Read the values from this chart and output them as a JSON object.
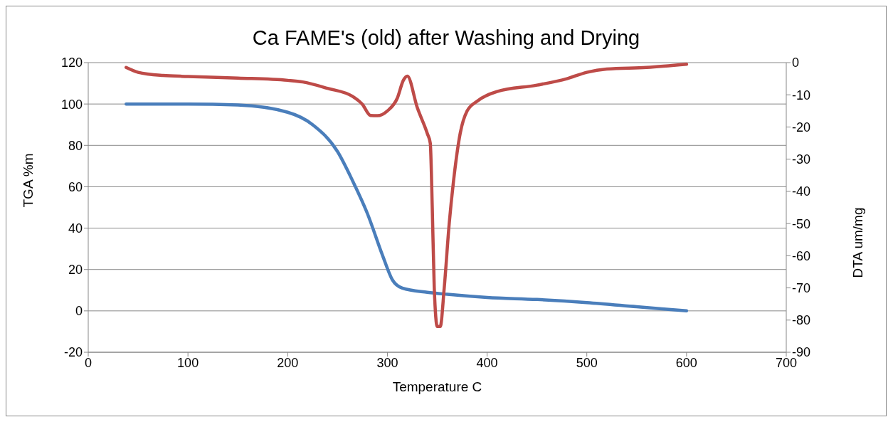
{
  "chart_data": {
    "type": "line",
    "title": "Ca FAME's (old) after Washing and Drying",
    "xlabel": "Temperature  C",
    "ylabel": "TGA %m",
    "y2label": "DTA um/mg",
    "xlim": [
      0,
      700
    ],
    "xticks": [
      0,
      100,
      200,
      300,
      400,
      500,
      600,
      700
    ],
    "ylim": [
      -20,
      120
    ],
    "yticks": [
      -20,
      0,
      20,
      40,
      60,
      80,
      100,
      120
    ],
    "y2lim": [
      -90,
      0
    ],
    "y2ticks": [
      -90,
      -80,
      -70,
      -60,
      -50,
      -40,
      -30,
      -20,
      -10,
      0
    ],
    "grid": "y",
    "legend": false,
    "marker": "none",
    "line_style": "solid",
    "series": [
      {
        "color": "#4a7ebb",
        "x": [
          38,
          100,
          150,
          200,
          225,
          250,
          265,
          280,
          295,
          305,
          315,
          340,
          360,
          400,
          450,
          500,
          550,
          600
        ],
        "values": [
          100,
          100,
          99.5,
          96,
          90,
          77,
          63,
          47,
          27,
          15,
          11,
          9,
          8,
          6.5,
          5.5,
          4,
          2,
          0
        ]
      },
      {
        "color": "#be4b48",
        "axis": "y2",
        "x": [
          38,
          50,
          75,
          100,
          150,
          200,
          215,
          240,
          265,
          275,
          283,
          290,
          300,
          310,
          316,
          320,
          330,
          340,
          343,
          345,
          347,
          350,
          353,
          357,
          362,
          367,
          373,
          380,
          390,
          410,
          450,
          480,
          500,
          520,
          560,
          600
        ],
        "values": [
          -1.5,
          -3,
          -4,
          -4.3,
          -4.8,
          -5.5,
          -6,
          -8,
          -10.5,
          -13,
          -16.4,
          -16.5,
          -15,
          -11,
          -5.5,
          -4.2,
          -14,
          -22,
          -25,
          -45,
          -70,
          -82,
          -82,
          -70,
          -50,
          -35,
          -22,
          -15,
          -12,
          -9,
          -7,
          -5,
          -3,
          -2,
          -1.5,
          -0.5
        ]
      }
    ]
  }
}
